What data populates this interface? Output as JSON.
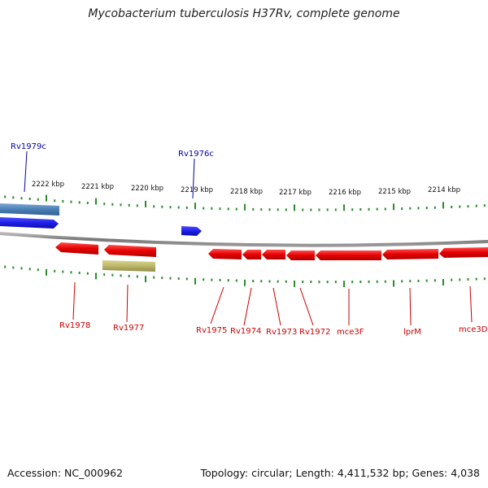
{
  "title": "Mycobacterium tuberculosis H37Rv, complete genome",
  "accession": "Accession: NC_000962",
  "topology": "Topology: circular; Length: 4,411,532 bp; Genes: 4,038",
  "colors": {
    "forward_gene": "#1f1fe6",
    "reverse_gene": "#e60000",
    "highlight_blue": "#4a7fb5",
    "highlight_olive": "#bdb76b",
    "tick": "#2a8c2a",
    "backbone": "#888888"
  },
  "kbp_labels": [
    {
      "id": "2222",
      "text": "2222 kbp"
    },
    {
      "id": "2221",
      "text": "2221 kbp"
    },
    {
      "id": "2220",
      "text": "2220 kbp"
    },
    {
      "id": "2219",
      "text": "2219 kbp"
    },
    {
      "id": "2218",
      "text": "2218 kbp"
    },
    {
      "id": "2217",
      "text": "2217 kbp"
    },
    {
      "id": "2216",
      "text": "2216 kbp"
    },
    {
      "id": "2215",
      "text": "2215 kbp"
    },
    {
      "id": "2214",
      "text": "2214 kbp"
    }
  ],
  "genes_top": [
    {
      "id": "rv1979c",
      "label": "Rv1979c"
    },
    {
      "id": "rv1976c",
      "label": "Rv1976c"
    }
  ],
  "genes_bottom": [
    {
      "id": "rv1978",
      "label": "Rv1978"
    },
    {
      "id": "rv1977",
      "label": "Rv1977"
    },
    {
      "id": "rv1975",
      "label": "Rv1975"
    },
    {
      "id": "rv1974",
      "label": "Rv1974"
    },
    {
      "id": "rv1973",
      "label": "Rv1973"
    },
    {
      "id": "rv1972",
      "label": "Rv1972"
    },
    {
      "id": "mce3f",
      "label": "mce3F"
    },
    {
      "id": "lprm",
      "label": "lprM"
    },
    {
      "id": "mce3d",
      "label": "mce3D"
    }
  ]
}
